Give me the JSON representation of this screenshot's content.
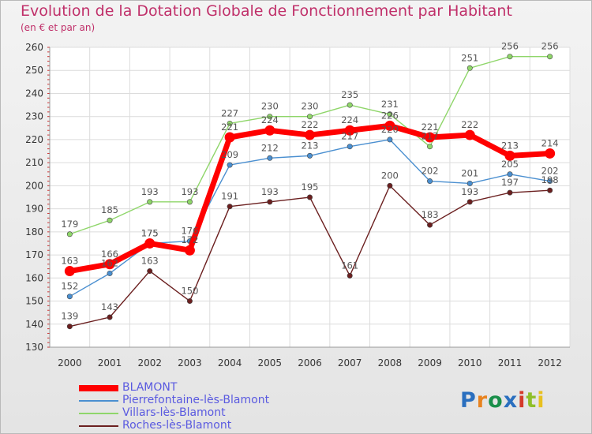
{
  "title": "Evolution de la Dotation Globale de Fonctionnement par Habitant",
  "subtitle": "(en € et par an)",
  "logo": {
    "text": "Proxiti",
    "colors": [
      "#2a6fbf",
      "#e8831f",
      "#1a8f4a",
      "#2a6fbf",
      "#d43a2a",
      "#8fbf2a",
      "#e8c01f"
    ]
  },
  "chart_data": {
    "type": "line",
    "title": "Evolution de la Dotation Globale de Fonctionnement par Habitant",
    "subtitle": "(en € et par an)",
    "xlabel": "",
    "ylabel": "",
    "ylim": [
      130,
      260
    ],
    "yticks": [
      130,
      140,
      150,
      160,
      170,
      180,
      190,
      200,
      210,
      220,
      230,
      240,
      250,
      260
    ],
    "categories": [
      "2000",
      "2001",
      "2002",
      "2003",
      "2004",
      "2005",
      "2006",
      "2007",
      "2008",
      "2009",
      "2010",
      "2011",
      "2012"
    ],
    "grid": true,
    "legend": "bottom-left",
    "series": [
      {
        "name": "Roches-lès-Blamont",
        "color": "#6b1f1f",
        "values": [
          139,
          143,
          163,
          150,
          191,
          193,
          195,
          161,
          200,
          183,
          193,
          197,
          198
        ]
      },
      {
        "name": "Villars-lès-Blamont",
        "color": "#8fd66a",
        "values": [
          179,
          185,
          193,
          193,
          227,
          230,
          230,
          235,
          231,
          217,
          251,
          256,
          256
        ]
      },
      {
        "name": "Pierrefontaine-lès-Blamont",
        "color": "#4a8fd0",
        "values": [
          152,
          162,
          175,
          176,
          209,
          212,
          213,
          217,
          220,
          202,
          201,
          205,
          202
        ]
      },
      {
        "name": "BLAMONT",
        "color": "#ff0000",
        "values": [
          163,
          166,
          175,
          172,
          221,
          224,
          222,
          224,
          226,
          221,
          222,
          213,
          214
        ]
      }
    ]
  }
}
